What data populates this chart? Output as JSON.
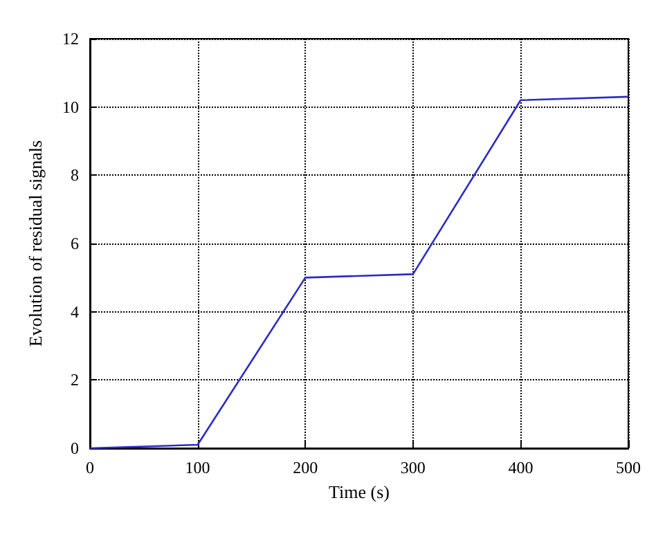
{
  "chart_data": {
    "type": "line",
    "xlabel": "Time (s)",
    "ylabel": "Evolution of residual signals",
    "x": [
      0,
      100,
      200,
      300,
      400,
      500
    ],
    "series": [
      {
        "color": "#2b2bc8",
        "values": [
          0,
          0.1,
          5.0,
          5.1,
          10.2,
          10.3
        ]
      }
    ],
    "xlim": [
      0,
      500
    ],
    "xticks": [
      0,
      100,
      200,
      300,
      400,
      500
    ],
    "ylim": [
      0,
      12
    ],
    "yticks": [
      0,
      2,
      4,
      6,
      8,
      10,
      12
    ],
    "grid": true,
    "marker": "none",
    "line_style": "solid"
  }
}
